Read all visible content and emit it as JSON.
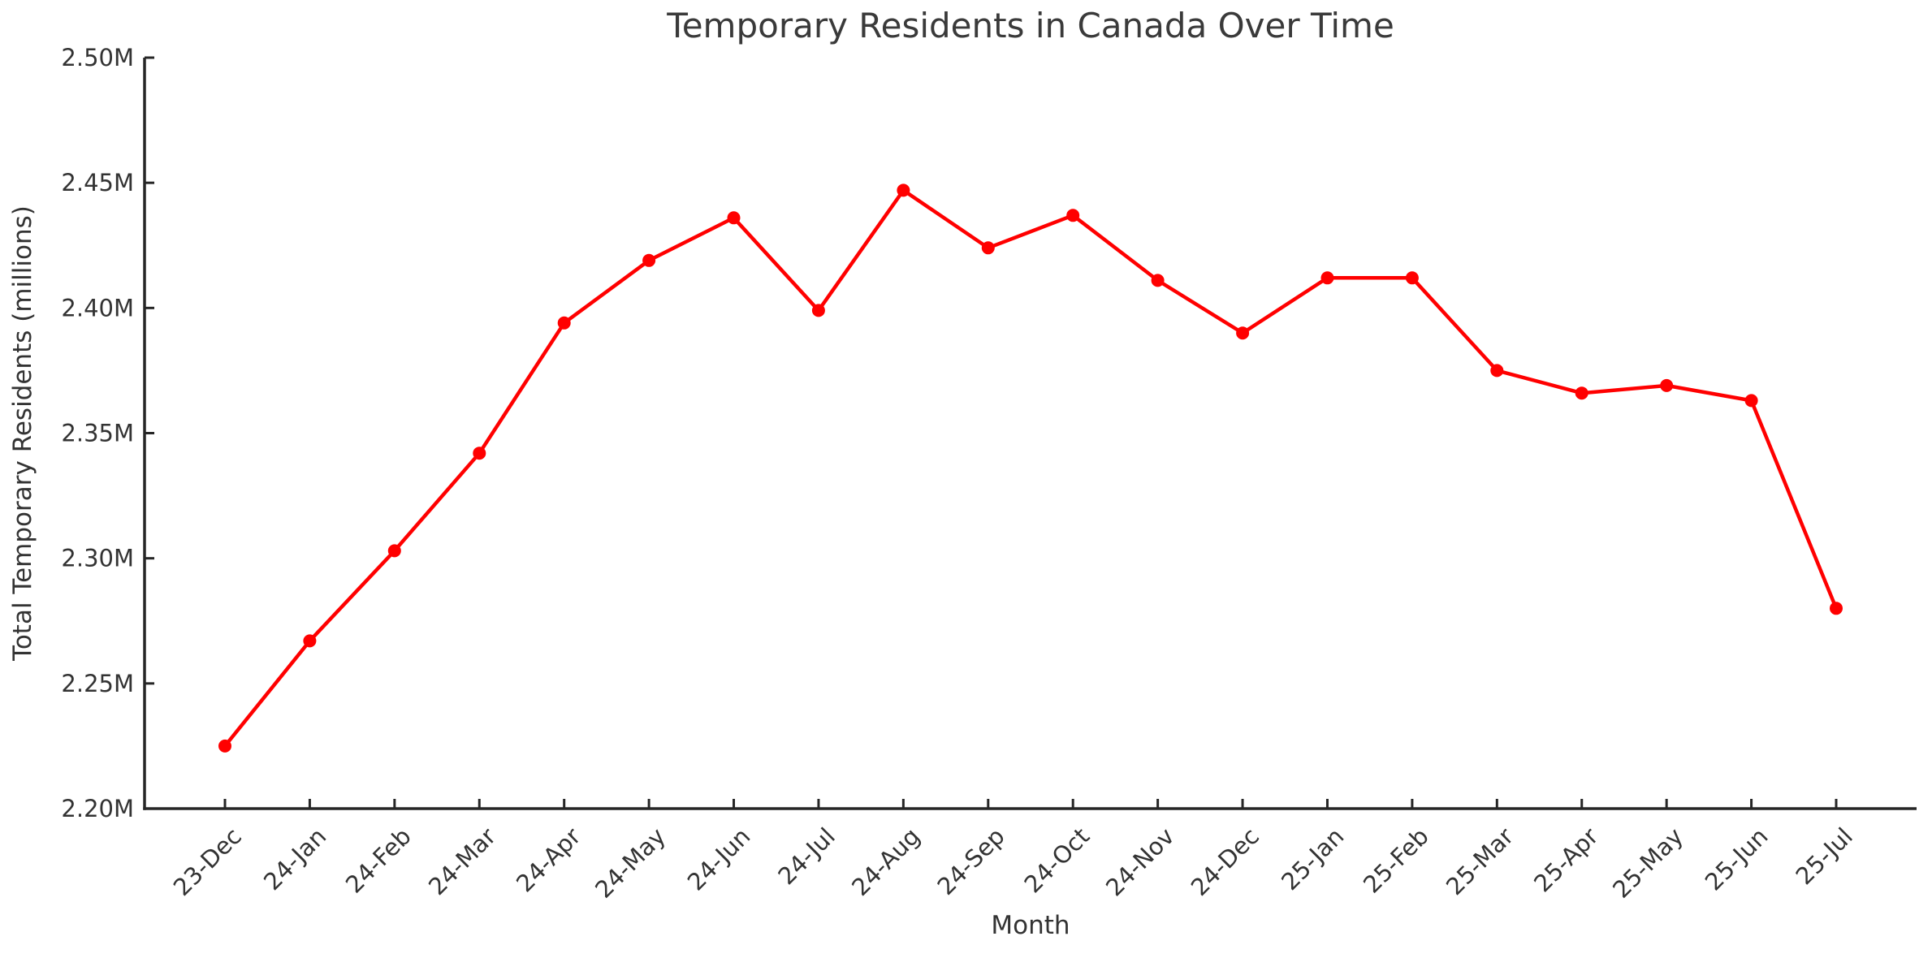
{
  "chart_data": {
    "type": "line",
    "title": "Temporary Residents in Canada Over Time",
    "xlabel": "Month",
    "ylabel": "Total Temporary Residents (millions)",
    "categories": [
      "23-Dec",
      "24-Jan",
      "24-Feb",
      "24-Mar",
      "24-Apr",
      "24-May",
      "24-Jun",
      "24-Jul",
      "24-Aug",
      "24-Sep",
      "24-Oct",
      "24-Nov",
      "24-Dec",
      "25-Jan",
      "25-Feb",
      "25-Mar",
      "25-Apr",
      "25-May",
      "25-Jun",
      "25-Jul"
    ],
    "series": [
      {
        "name": "Total Temporary Residents",
        "values": [
          2.225,
          2.267,
          2.303,
          2.342,
          2.394,
          2.419,
          2.436,
          2.399,
          2.447,
          2.424,
          2.437,
          2.411,
          2.39,
          2.412,
          2.412,
          2.375,
          2.366,
          2.369,
          2.363,
          2.28
        ]
      }
    ],
    "ylim": [
      2.2,
      2.5
    ],
    "ytick_step": 0.05,
    "ytick_suffix": "M",
    "ytick_decimals": 2,
    "xtick_rotation_deg": 45,
    "grid": false,
    "legend": false,
    "marker": "circle"
  },
  "style": {
    "line_color": "#ff0000",
    "marker_color": "#ff0000",
    "axis_color": "#262626",
    "tick_label_color": "#333333",
    "axis_label_color": "#333333",
    "title_color": "#3a3a3a",
    "background": "#ffffff"
  }
}
